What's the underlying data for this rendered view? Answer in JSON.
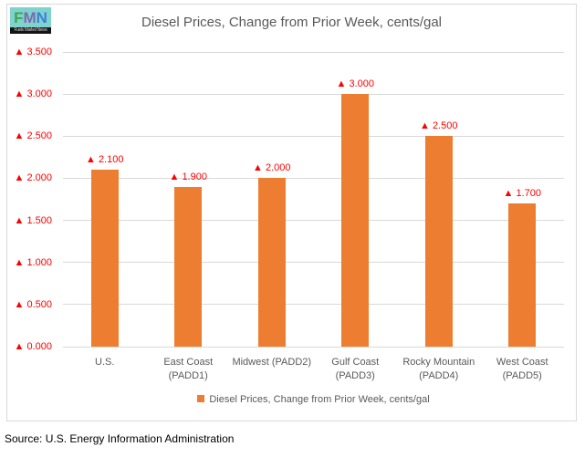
{
  "logo": {
    "letters": [
      {
        "char": "F",
        "color": "#3FA54B"
      },
      {
        "char": "M",
        "color": "#7C6BAF"
      },
      {
        "char": "N",
        "color": "#3F7FD6"
      }
    ],
    "caption": "Fuels Market News",
    "bg_color": "#7FD3CE",
    "strip_color": "#141414",
    "caption_color": "#CFCFCF"
  },
  "chart_data": {
    "type": "bar",
    "title": "Diesel Prices, Change from Prior Week, cents/gal",
    "categories": [
      "U.S.",
      "East Coast (PADD1)",
      "Midwest (PADD2)",
      "Gulf Coast (PADD3)",
      "Rocky Mountain (PADD4)",
      "West Coast (PADD5)"
    ],
    "x_tick_lines": [
      [
        "U.S."
      ],
      [
        "East Coast",
        "(PADD1)"
      ],
      [
        "Midwest (PADD2)"
      ],
      [
        "Gulf Coast",
        "(PADD3)"
      ],
      [
        "Rocky Mountain",
        "(PADD4)"
      ],
      [
        "West Coast",
        "(PADD5)"
      ]
    ],
    "values": [
      2.1,
      1.9,
      2.0,
      3.0,
      2.5,
      1.7
    ],
    "bar_labels": [
      "▲ 2.100",
      "▲ 1.900",
      "▲ 2.000",
      "▲ 3.000",
      "▲ 2.500",
      "▲ 1.700"
    ],
    "ylim": [
      0,
      3.5
    ],
    "y_ticks": [
      {
        "value": 0.0,
        "label": "▲ 0.000"
      },
      {
        "value": 0.5,
        "label": "▲ 0.500"
      },
      {
        "value": 1.0,
        "label": "▲ 1.000"
      },
      {
        "value": 1.5,
        "label": "▲ 1.500"
      },
      {
        "value": 2.0,
        "label": "▲ 2.000"
      },
      {
        "value": 2.5,
        "label": "▲ 2.500"
      },
      {
        "value": 3.0,
        "label": "▲ 3.000"
      },
      {
        "value": 3.5,
        "label": "▲ 3.500"
      }
    ],
    "xlabel": "",
    "ylabel": "",
    "grid": true,
    "legend_position": "bottom",
    "bar_color": "#ED7D31",
    "data_label_color": "#FF0000",
    "tick_label_color": "#FF0000",
    "axis_text_color": "#595959",
    "gridline_color": "#D9D9D9"
  },
  "legend": {
    "label": "Diesel Prices, Change from Prior Week, cents/gal",
    "swatch_color": "#ED7D31"
  },
  "footer": {
    "source": "Source: U.S. Energy Information Administration"
  }
}
